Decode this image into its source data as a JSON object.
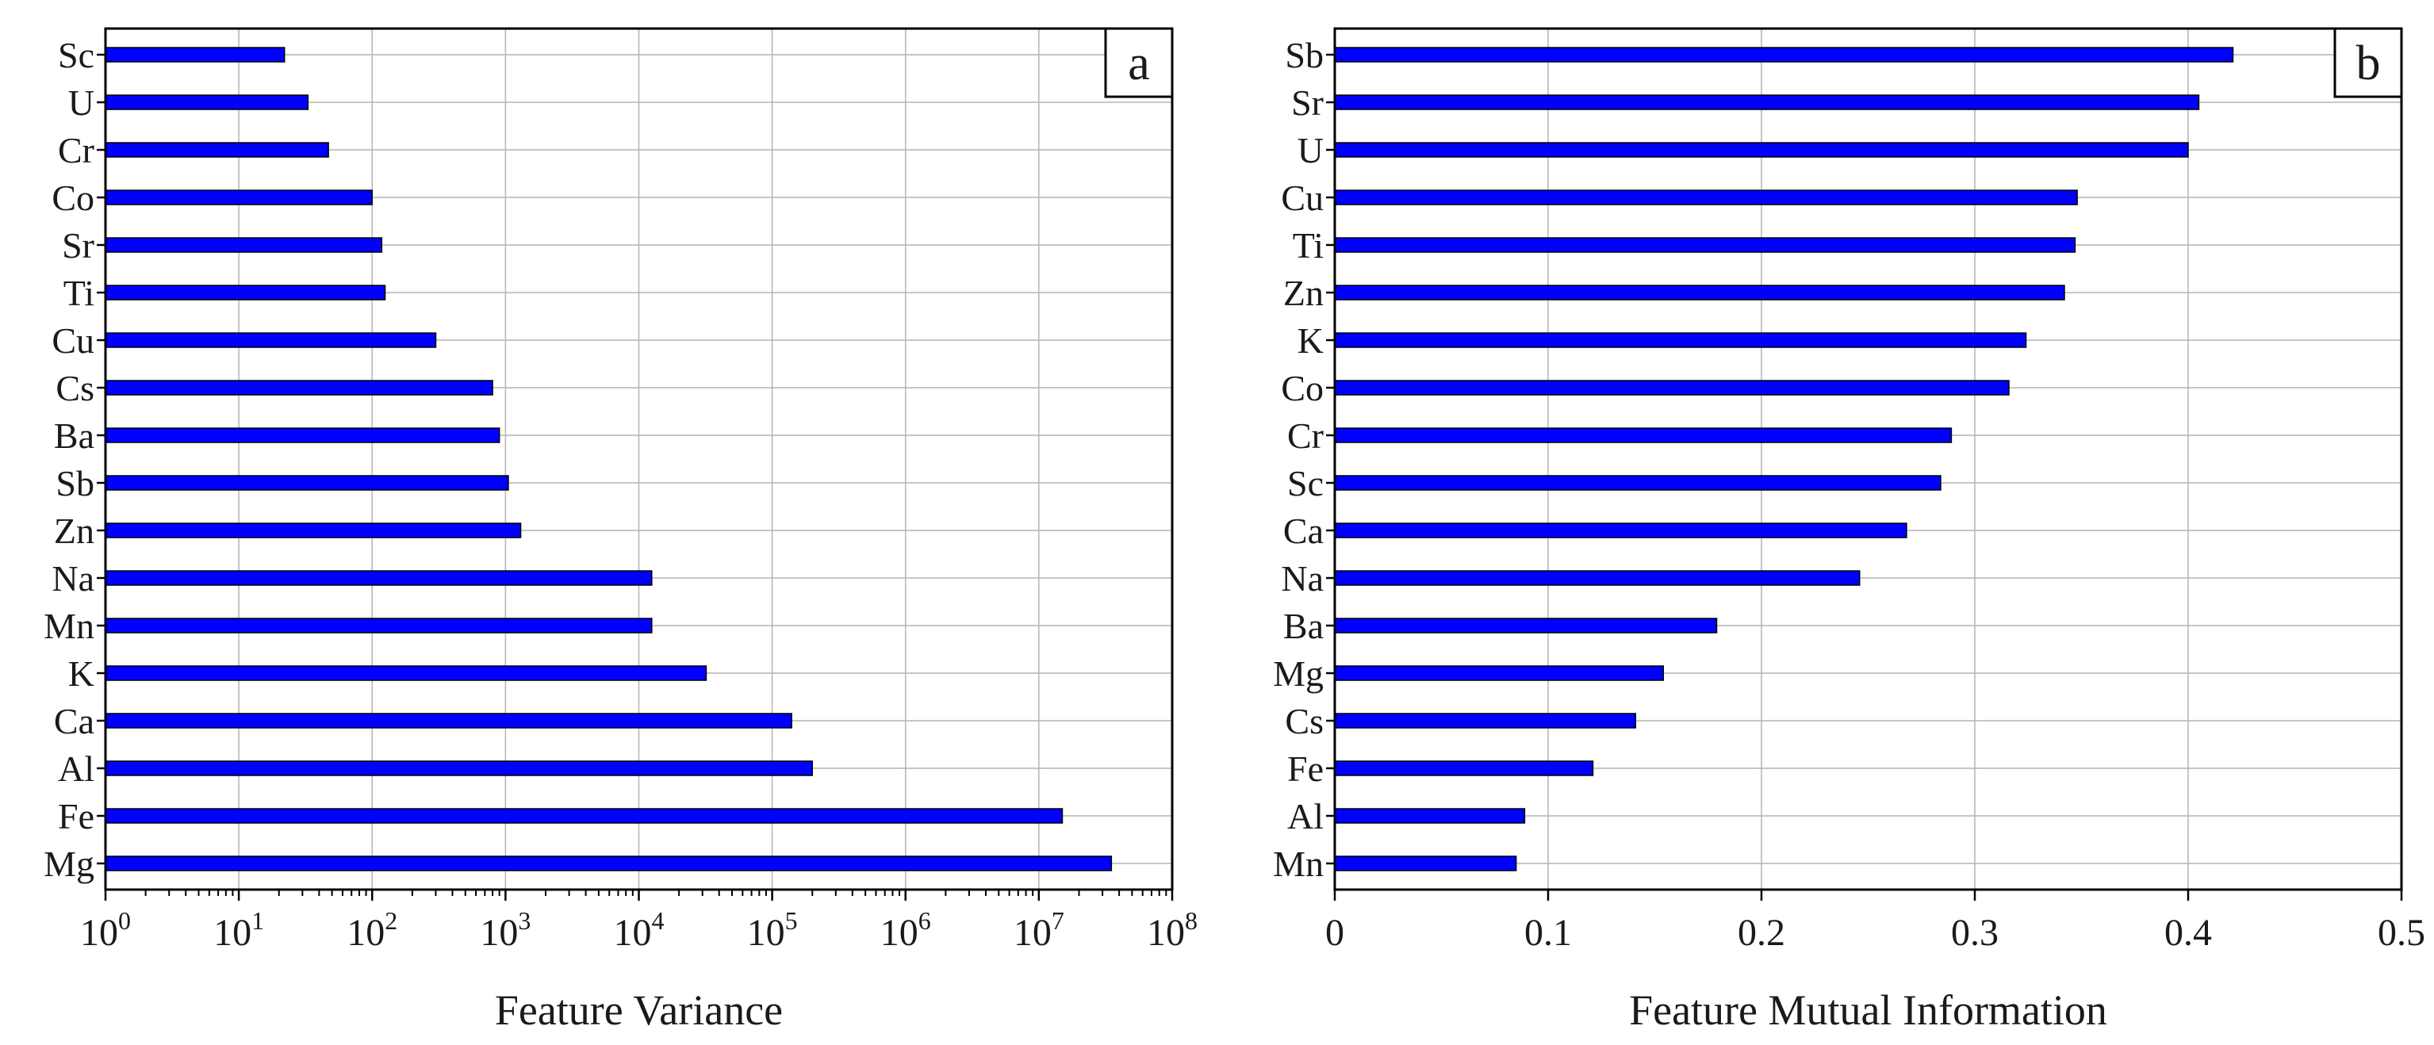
{
  "colors": {
    "bar_fill": "#0000ff",
    "bar_stroke": "#000000",
    "grid": "#b4b4b4",
    "axis": "#000000",
    "background": "#ffffff"
  },
  "chart_data": [
    {
      "type": "bar",
      "orientation": "horizontal",
      "panel_label": "a",
      "xlabel": "Feature Variance",
      "ylabel": "",
      "xscale": "log",
      "xlim": [
        1,
        100000000
      ],
      "x_ticks": [
        1,
        10,
        100,
        1000,
        10000,
        100000,
        1000000,
        10000000,
        100000000
      ],
      "x_tick_labels": [
        {
          "base": "10",
          "exp": "0"
        },
        {
          "base": "10",
          "exp": "1"
        },
        {
          "base": "10",
          "exp": "2"
        },
        {
          "base": "10",
          "exp": "3"
        },
        {
          "base": "10",
          "exp": "4"
        },
        {
          "base": "10",
          "exp": "5"
        },
        {
          "base": "10",
          "exp": "6"
        },
        {
          "base": "10",
          "exp": "7"
        },
        {
          "base": "10",
          "exp": "8"
        }
      ],
      "grid": true,
      "categories": [
        "Sc",
        "U",
        "Cr",
        "Co",
        "Sr",
        "Ti",
        "Cu",
        "Cs",
        "Ba",
        "Sb",
        "Zn",
        "Na",
        "Mn",
        "K",
        "Ca",
        "Al",
        "Fe",
        "Mg"
      ],
      "values": [
        22,
        33,
        47,
        100,
        118,
        125,
        300,
        800,
        900,
        1050,
        1300,
        12500,
        12500,
        32000,
        140000,
        200000,
        15000000,
        35000000
      ]
    },
    {
      "type": "bar",
      "orientation": "horizontal",
      "panel_label": "b",
      "xlabel": "Feature Mutual Information",
      "ylabel": "",
      "xscale": "linear",
      "xlim": [
        0,
        0.5
      ],
      "x_ticks": [
        0,
        0.1,
        0.2,
        0.3,
        0.4,
        0.5
      ],
      "x_tick_labels": [
        "0",
        "0.1",
        "0.2",
        "0.3",
        "0.4",
        "0.5"
      ],
      "grid": true,
      "categories": [
        "Sb",
        "Sr",
        "U",
        "Cu",
        "Ti",
        "Zn",
        "K",
        "Co",
        "Cr",
        "Sc",
        "Ca",
        "Na",
        "Ba",
        "Mg",
        "Cs",
        "Fe",
        "Al",
        "Mn"
      ],
      "values": [
        0.421,
        0.405,
        0.4,
        0.348,
        0.347,
        0.342,
        0.324,
        0.316,
        0.289,
        0.284,
        0.268,
        0.246,
        0.179,
        0.154,
        0.141,
        0.121,
        0.089,
        0.085
      ]
    }
  ]
}
